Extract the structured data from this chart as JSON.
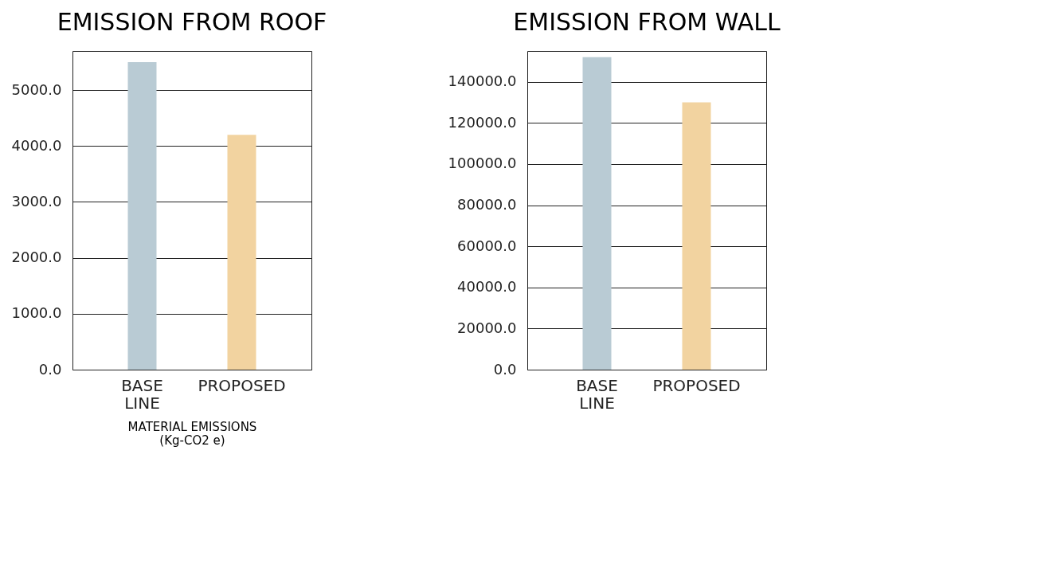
{
  "chart_data": [
    {
      "type": "bar",
      "title": "EMISSION FROM ROOF",
      "xlabel": "MATERIAL EMISSIONS\n(Kg-CO2 e)",
      "categories": [
        "BASE LINE",
        "PROPOSED"
      ],
      "values": [
        5500,
        4200
      ],
      "colors": [
        "#b9cbd4",
        "#f2d3a0"
      ],
      "ylim": [
        0,
        5700
      ],
      "yticks": [
        {
          "value": 0,
          "label": "0.0"
        },
        {
          "value": 1000,
          "label": "1000.0"
        },
        {
          "value": 2000,
          "label": "2000.0"
        },
        {
          "value": 3000,
          "label": "3000.0"
        },
        {
          "value": 4000,
          "label": "4000.0"
        },
        {
          "value": 5000,
          "label": "5000.0"
        }
      ],
      "grid": "y",
      "legend": false
    },
    {
      "type": "bar",
      "title": "EMISSION FROM WALL",
      "categories": [
        "BASE LINE",
        "PROPOSED"
      ],
      "values": [
        152000,
        130000
      ],
      "colors": [
        "#b9cbd4",
        "#f2d3a0"
      ],
      "ylim": [
        0,
        155000
      ],
      "yticks": [
        {
          "value": 0,
          "label": "0.0"
        },
        {
          "value": 20000,
          "label": "20000.0"
        },
        {
          "value": 40000,
          "label": "40000.0"
        },
        {
          "value": 60000,
          "label": "60000.0"
        },
        {
          "value": 80000,
          "label": "80000.0"
        },
        {
          "value": 100000,
          "label": "100000.0"
        },
        {
          "value": 120000,
          "label": "120000.0"
        },
        {
          "value": 140000,
          "label": "140000.0"
        }
      ],
      "grid": "y",
      "legend": false
    }
  ]
}
